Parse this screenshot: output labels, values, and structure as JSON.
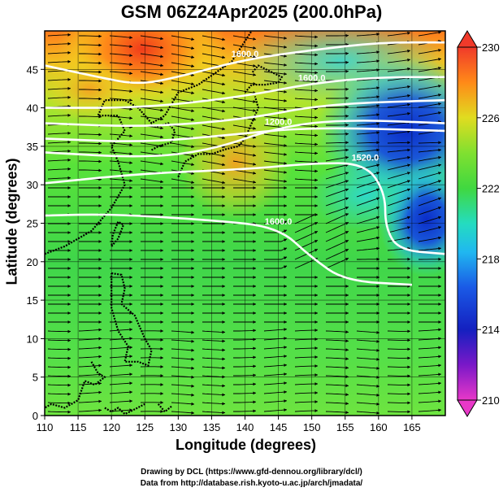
{
  "chart_data": {
    "type": "heatmap",
    "title": "GSM 06Z24Apr2025 (200.0hPa)",
    "xlabel": "Longitude (degrees)",
    "ylabel": "Latitude  (degrees)",
    "xlim": [
      110,
      170
    ],
    "ylim": [
      0,
      50
    ],
    "x_ticks": [
      110,
      115,
      120,
      125,
      130,
      135,
      140,
      145,
      150,
      155,
      160,
      165
    ],
    "y_ticks": [
      0,
      5,
      10,
      15,
      20,
      25,
      30,
      35,
      40,
      45
    ],
    "grid": true,
    "colorbar": {
      "ticks": [
        210,
        214,
        218,
        222,
        226,
        230
      ],
      "range": [
        210,
        230
      ],
      "position": "right"
    },
    "contours": [
      {
        "label": "1600.0",
        "points": [
          [
            110,
            26
          ],
          [
            120,
            26.2
          ],
          [
            135,
            25.4
          ],
          [
            145,
            24.5
          ],
          [
            150,
            20.5
          ],
          [
            155,
            17.5
          ],
          [
            165,
            17
          ]
        ]
      },
      {
        "label": "1520.0",
        "points": [
          [
            110,
            30.2
          ],
          [
            125,
            31.5
          ],
          [
            140,
            32
          ],
          [
            150,
            32.8
          ],
          [
            158,
            32.8
          ],
          [
            161,
            29
          ],
          [
            161,
            24.5
          ],
          [
            163,
            21.5
          ],
          [
            170,
            21
          ]
        ]
      },
      {
        "label": "1200.0",
        "points": [
          [
            110,
            34.2
          ],
          [
            125,
            33.5
          ],
          [
            135,
            34.5
          ],
          [
            145,
            37.5
          ],
          [
            155,
            38.5
          ],
          [
            170,
            38
          ]
        ]
      },
      {
        "label": "1600.0",
        "points": [
          [
            110,
            40
          ],
          [
            125,
            40
          ],
          [
            140,
            41.5
          ],
          [
            150,
            43.2
          ],
          [
            160,
            44
          ],
          [
            170,
            44
          ]
        ]
      },
      {
        "label": "1600.0",
        "points": [
          [
            110,
            45.5
          ],
          [
            118,
            44
          ],
          [
            124,
            43
          ],
          [
            130,
            44
          ],
          [
            140,
            46.3
          ],
          [
            150,
            47.5
          ],
          [
            160,
            48.5
          ],
          [
            170,
            48.5
          ]
        ]
      },
      {
        "label": "",
        "points": [
          [
            110,
            38
          ],
          [
            125,
            37.5
          ],
          [
            140,
            38.5
          ],
          [
            152,
            40.5
          ],
          [
            170,
            41
          ]
        ]
      },
      {
        "label": "",
        "points": [
          [
            110,
            36
          ],
          [
            125,
            35.5
          ],
          [
            138,
            36.5
          ],
          [
            150,
            37.5
          ],
          [
            170,
            37
          ]
        ]
      }
    ]
  },
  "credits": {
    "line1": "Drawing by DCL (https://www.gfd-dennou.org/library/dcl/)",
    "line2": "Data from http://database.rish.kyoto-u.ac.jp/arch/jmadata/"
  }
}
